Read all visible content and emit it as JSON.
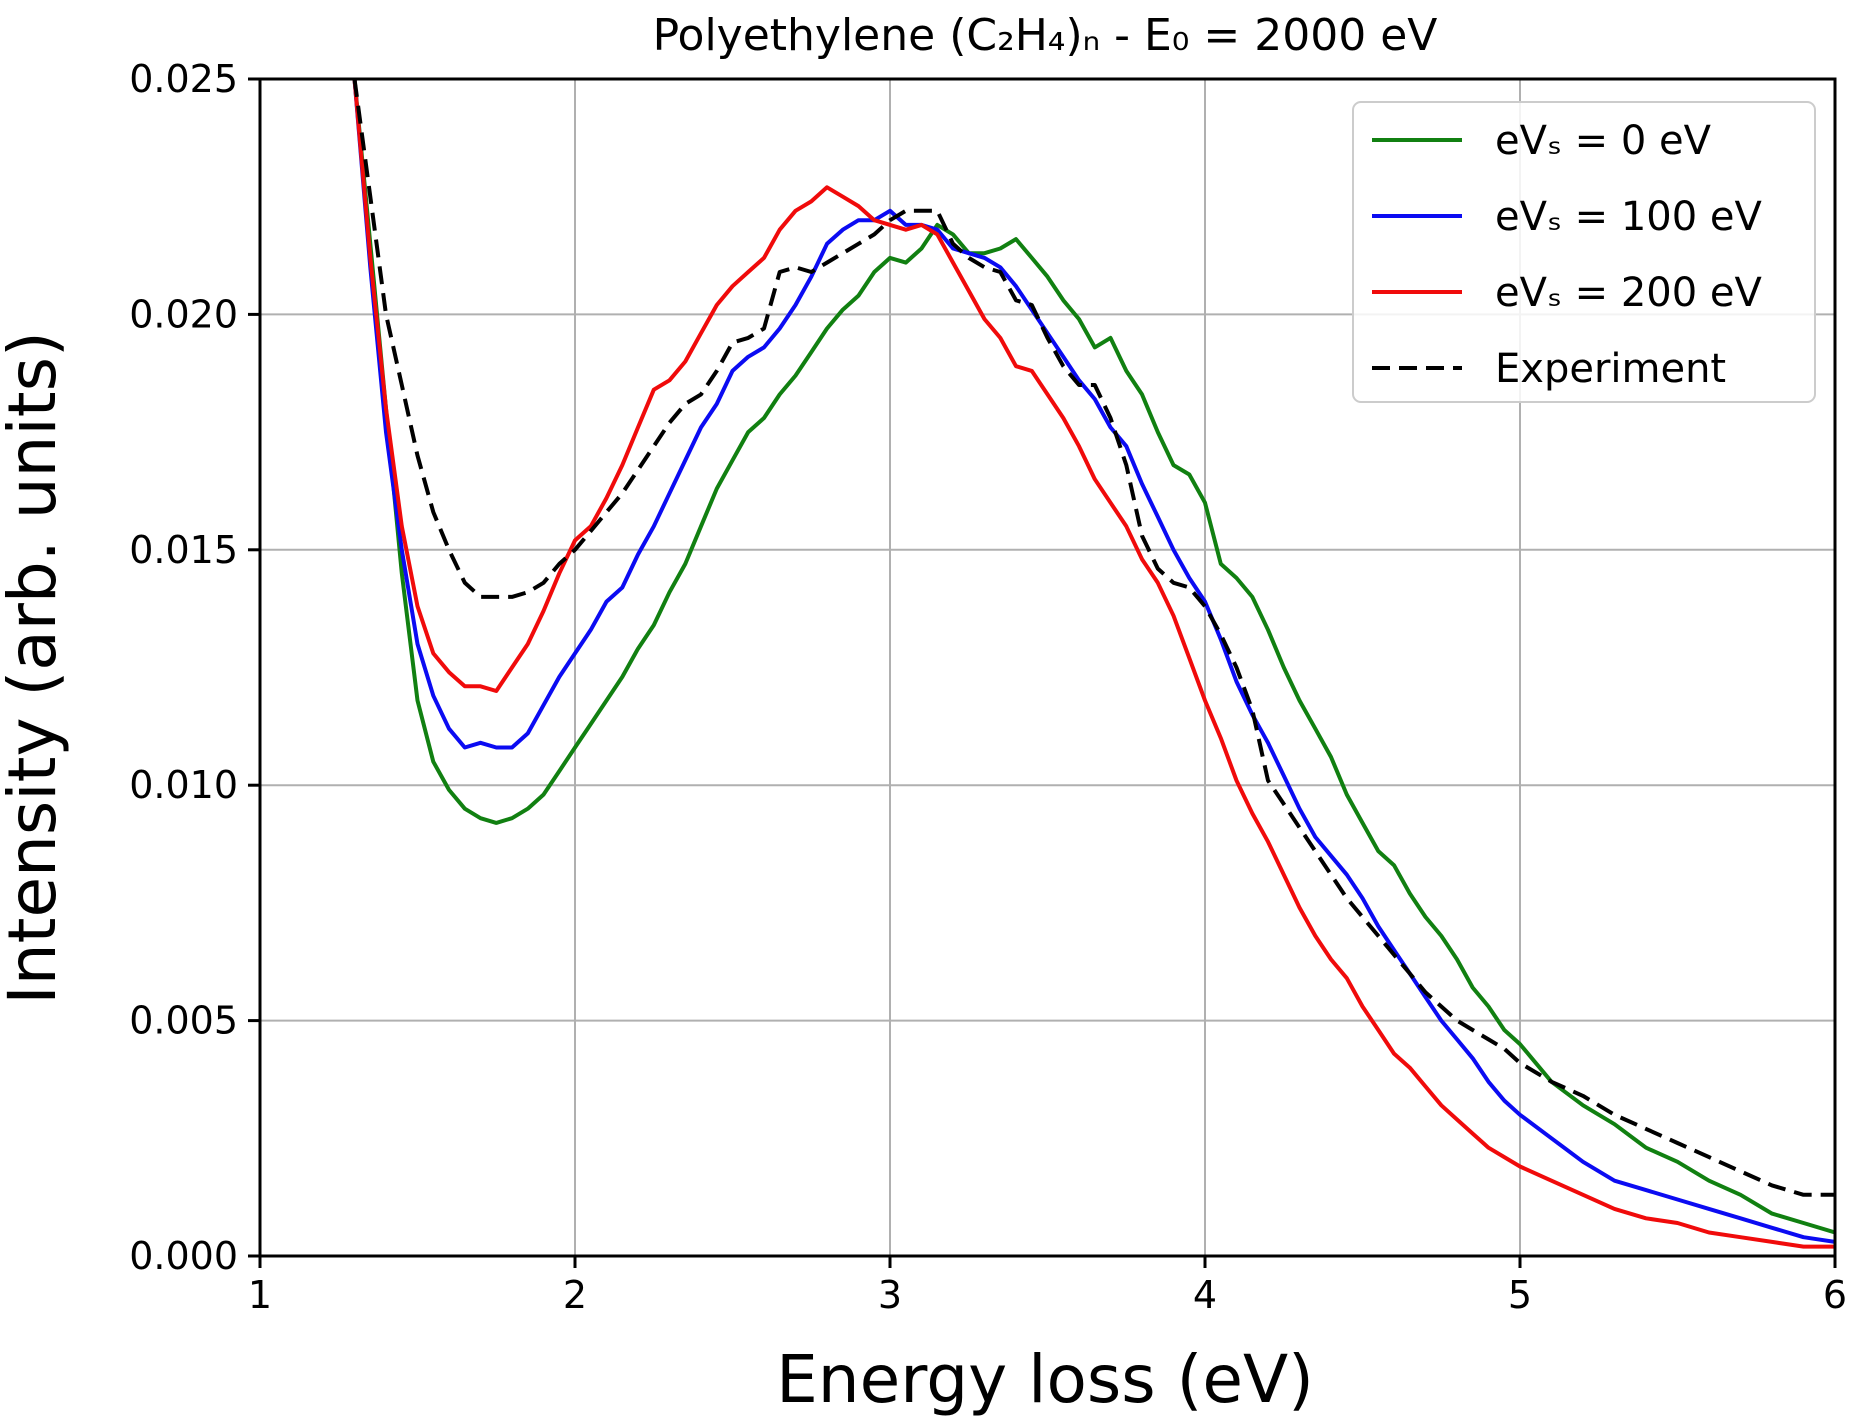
{
  "chart_data": {
    "type": "line",
    "title": "Polyethylene (C₂H₄)ₙ - E₀ = 2000 eV",
    "xlabel": "Energy loss (eV)",
    "ylabel": "Intensity (arb. units)",
    "xlim": [
      1,
      6
    ],
    "ylim": [
      0,
      0.025
    ],
    "xticks": [
      1,
      2,
      3,
      4,
      5,
      6
    ],
    "xtick_labels": [
      "1",
      "2",
      "3",
      "4",
      "5",
      "6"
    ],
    "yticks": [
      0,
      0.005,
      0.01,
      0.015,
      0.02,
      0.025
    ],
    "ytick_labels": [
      "0.000",
      "0.005",
      "0.010",
      "0.015",
      "0.020",
      "0.025"
    ],
    "grid": true,
    "legend_position": "top-right",
    "series": [
      {
        "name": "eVₛ = 0 eV",
        "color": "#118011",
        "dash": "solid",
        "x": [
          1.3,
          1.35,
          1.4,
          1.45,
          1.5,
          1.55,
          1.6,
          1.65,
          1.7,
          1.75,
          1.8,
          1.85,
          1.9,
          1.95,
          2.0,
          2.05,
          2.1,
          2.15,
          2.2,
          2.25,
          2.3,
          2.35,
          2.4,
          2.45,
          2.5,
          2.55,
          2.6,
          2.65,
          2.7,
          2.75,
          2.8,
          2.85,
          2.9,
          2.95,
          3.0,
          3.05,
          3.1,
          3.15,
          3.2,
          3.25,
          3.3,
          3.35,
          3.4,
          3.45,
          3.5,
          3.55,
          3.6,
          3.65,
          3.7,
          3.75,
          3.8,
          3.85,
          3.9,
          3.95,
          4.0,
          4.05,
          4.1,
          4.15,
          4.2,
          4.25,
          4.3,
          4.35,
          4.4,
          4.45,
          4.5,
          4.55,
          4.6,
          4.65,
          4.7,
          4.75,
          4.8,
          4.85,
          4.9,
          4.95,
          5.0,
          5.1,
          5.2,
          5.3,
          5.4,
          5.5,
          5.6,
          5.7,
          5.8,
          5.9,
          6.0
        ],
        "y": [
          0.025,
          0.0215,
          0.018,
          0.0145,
          0.0118,
          0.0105,
          0.0099,
          0.0095,
          0.0093,
          0.0092,
          0.0093,
          0.0095,
          0.0098,
          0.0103,
          0.0108,
          0.0113,
          0.0118,
          0.0123,
          0.0129,
          0.0134,
          0.0141,
          0.0147,
          0.0155,
          0.0163,
          0.0169,
          0.0175,
          0.0178,
          0.0183,
          0.0187,
          0.0192,
          0.0197,
          0.0201,
          0.0204,
          0.0209,
          0.0212,
          0.0211,
          0.0214,
          0.0219,
          0.0217,
          0.0213,
          0.0213,
          0.0214,
          0.0216,
          0.0212,
          0.0208,
          0.0203,
          0.0199,
          0.0193,
          0.0195,
          0.0188,
          0.0183,
          0.0175,
          0.0168,
          0.0166,
          0.016,
          0.0147,
          0.0144,
          0.014,
          0.0133,
          0.0125,
          0.0118,
          0.0112,
          0.0106,
          0.0098,
          0.0092,
          0.0086,
          0.0083,
          0.0077,
          0.0072,
          0.0068,
          0.0063,
          0.0057,
          0.0053,
          0.0048,
          0.0045,
          0.0037,
          0.0032,
          0.0028,
          0.0023,
          0.002,
          0.0016,
          0.0013,
          0.0009,
          0.0007,
          0.0005
        ]
      },
      {
        "name": "eVₛ = 100 eV",
        "color": "#0b0bf2",
        "dash": "solid",
        "x": [
          1.3,
          1.35,
          1.4,
          1.45,
          1.5,
          1.55,
          1.6,
          1.65,
          1.7,
          1.75,
          1.8,
          1.85,
          1.9,
          1.95,
          2.0,
          2.05,
          2.1,
          2.15,
          2.2,
          2.25,
          2.3,
          2.35,
          2.4,
          2.45,
          2.5,
          2.55,
          2.6,
          2.65,
          2.7,
          2.75,
          2.8,
          2.85,
          2.9,
          2.95,
          3.0,
          3.05,
          3.1,
          3.15,
          3.2,
          3.25,
          3.3,
          3.35,
          3.4,
          3.45,
          3.5,
          3.55,
          3.6,
          3.65,
          3.7,
          3.75,
          3.8,
          3.85,
          3.9,
          3.95,
          4.0,
          4.05,
          4.1,
          4.15,
          4.2,
          4.25,
          4.3,
          4.35,
          4.4,
          4.45,
          4.5,
          4.55,
          4.6,
          4.65,
          4.7,
          4.75,
          4.8,
          4.85,
          4.9,
          4.95,
          5.0,
          5.1,
          5.2,
          5.3,
          5.4,
          5.5,
          5.6,
          5.7,
          5.8,
          5.9,
          6.0
        ],
        "y": [
          0.025,
          0.021,
          0.0175,
          0.015,
          0.013,
          0.0119,
          0.0112,
          0.0108,
          0.0109,
          0.0108,
          0.0108,
          0.0111,
          0.0117,
          0.0123,
          0.0128,
          0.0133,
          0.0139,
          0.0142,
          0.0149,
          0.0155,
          0.0162,
          0.0169,
          0.0176,
          0.0181,
          0.0188,
          0.0191,
          0.0193,
          0.0197,
          0.0202,
          0.0208,
          0.0215,
          0.0218,
          0.022,
          0.022,
          0.0222,
          0.0219,
          0.0219,
          0.0218,
          0.0214,
          0.0213,
          0.0212,
          0.021,
          0.0206,
          0.0201,
          0.0196,
          0.0191,
          0.0186,
          0.0182,
          0.0176,
          0.0172,
          0.0164,
          0.0157,
          0.015,
          0.0144,
          0.0139,
          0.0131,
          0.0122,
          0.0115,
          0.0109,
          0.0102,
          0.0095,
          0.0089,
          0.0085,
          0.0081,
          0.0076,
          0.007,
          0.0065,
          0.006,
          0.0055,
          0.005,
          0.0046,
          0.0042,
          0.0037,
          0.0033,
          0.003,
          0.0025,
          0.002,
          0.0016,
          0.0014,
          0.0012,
          0.001,
          0.0008,
          0.0006,
          0.0004,
          0.0003
        ]
      },
      {
        "name": "eVₛ = 200 eV",
        "color": "#f00b0b",
        "dash": "solid",
        "x": [
          1.3,
          1.35,
          1.4,
          1.45,
          1.5,
          1.55,
          1.6,
          1.65,
          1.7,
          1.75,
          1.8,
          1.85,
          1.9,
          1.95,
          2.0,
          2.05,
          2.1,
          2.15,
          2.2,
          2.25,
          2.3,
          2.35,
          2.4,
          2.45,
          2.5,
          2.55,
          2.6,
          2.65,
          2.7,
          2.75,
          2.8,
          2.85,
          2.9,
          2.95,
          3.0,
          3.05,
          3.1,
          3.15,
          3.2,
          3.25,
          3.3,
          3.35,
          3.4,
          3.45,
          3.5,
          3.55,
          3.6,
          3.65,
          3.7,
          3.75,
          3.8,
          3.85,
          3.9,
          3.95,
          4.0,
          4.05,
          4.1,
          4.15,
          4.2,
          4.25,
          4.3,
          4.35,
          4.4,
          4.45,
          4.5,
          4.55,
          4.6,
          4.65,
          4.7,
          4.75,
          4.8,
          4.85,
          4.9,
          4.95,
          5.0,
          5.1,
          5.2,
          5.3,
          5.4,
          5.5,
          5.6,
          5.7,
          5.8,
          5.9,
          6.0
        ],
        "y": [
          0.025,
          0.0212,
          0.018,
          0.0155,
          0.0138,
          0.0128,
          0.0124,
          0.0121,
          0.0121,
          0.012,
          0.0125,
          0.013,
          0.0137,
          0.0145,
          0.0152,
          0.0155,
          0.0161,
          0.0168,
          0.0176,
          0.0184,
          0.0186,
          0.019,
          0.0196,
          0.0202,
          0.0206,
          0.0209,
          0.0212,
          0.0218,
          0.0222,
          0.0224,
          0.0227,
          0.0225,
          0.0223,
          0.022,
          0.0219,
          0.0218,
          0.0219,
          0.0217,
          0.0211,
          0.0205,
          0.0199,
          0.0195,
          0.0189,
          0.0188,
          0.0183,
          0.0178,
          0.0172,
          0.0165,
          0.016,
          0.0155,
          0.0148,
          0.0143,
          0.0136,
          0.0127,
          0.0118,
          0.011,
          0.0101,
          0.0094,
          0.0088,
          0.0081,
          0.0074,
          0.0068,
          0.0063,
          0.0059,
          0.0053,
          0.0048,
          0.0043,
          0.004,
          0.0036,
          0.0032,
          0.0029,
          0.0026,
          0.0023,
          0.0021,
          0.0019,
          0.0016,
          0.0013,
          0.001,
          0.0008,
          0.0007,
          0.0005,
          0.0004,
          0.0003,
          0.0002,
          0.0002
        ]
      },
      {
        "name": "Experiment",
        "color": "#000000",
        "dash": "dashed",
        "x": [
          1.3,
          1.35,
          1.4,
          1.45,
          1.5,
          1.55,
          1.6,
          1.65,
          1.7,
          1.75,
          1.8,
          1.85,
          1.9,
          1.95,
          2.0,
          2.05,
          2.1,
          2.15,
          2.2,
          2.25,
          2.3,
          2.35,
          2.4,
          2.45,
          2.5,
          2.55,
          2.6,
          2.65,
          2.7,
          2.75,
          2.8,
          2.85,
          2.9,
          2.95,
          3.0,
          3.05,
          3.1,
          3.15,
          3.2,
          3.25,
          3.3,
          3.35,
          3.4,
          3.45,
          3.5,
          3.55,
          3.6,
          3.65,
          3.7,
          3.75,
          3.8,
          3.85,
          3.9,
          3.95,
          4.0,
          4.05,
          4.1,
          4.15,
          4.2,
          4.25,
          4.3,
          4.35,
          4.4,
          4.45,
          4.5,
          4.55,
          4.6,
          4.65,
          4.7,
          4.75,
          4.8,
          4.85,
          4.9,
          4.95,
          5.0,
          5.1,
          5.2,
          5.3,
          5.4,
          5.5,
          5.6,
          5.7,
          5.8,
          5.9,
          6.0
        ],
        "y": [
          0.025,
          0.0225,
          0.02,
          0.0185,
          0.017,
          0.0158,
          0.015,
          0.0143,
          0.014,
          0.014,
          0.014,
          0.0141,
          0.0143,
          0.0147,
          0.015,
          0.0154,
          0.0158,
          0.0162,
          0.0167,
          0.0172,
          0.0177,
          0.0181,
          0.0183,
          0.0188,
          0.0194,
          0.0195,
          0.0197,
          0.0209,
          0.021,
          0.0209,
          0.0211,
          0.0213,
          0.0215,
          0.0217,
          0.022,
          0.0222,
          0.0222,
          0.0222,
          0.0215,
          0.0212,
          0.021,
          0.0209,
          0.0203,
          0.0202,
          0.0195,
          0.0189,
          0.0185,
          0.0185,
          0.0178,
          0.0168,
          0.0153,
          0.0146,
          0.0143,
          0.0142,
          0.0138,
          0.0132,
          0.0125,
          0.0116,
          0.0101,
          0.0096,
          0.0091,
          0.0086,
          0.0081,
          0.0076,
          0.0072,
          0.0068,
          0.0064,
          0.006,
          0.0056,
          0.0053,
          0.005,
          0.0048,
          0.0046,
          0.0044,
          0.0041,
          0.0037,
          0.0034,
          0.003,
          0.0027,
          0.0024,
          0.0021,
          0.0018,
          0.0015,
          0.0013,
          0.0013
        ]
      }
    ]
  }
}
